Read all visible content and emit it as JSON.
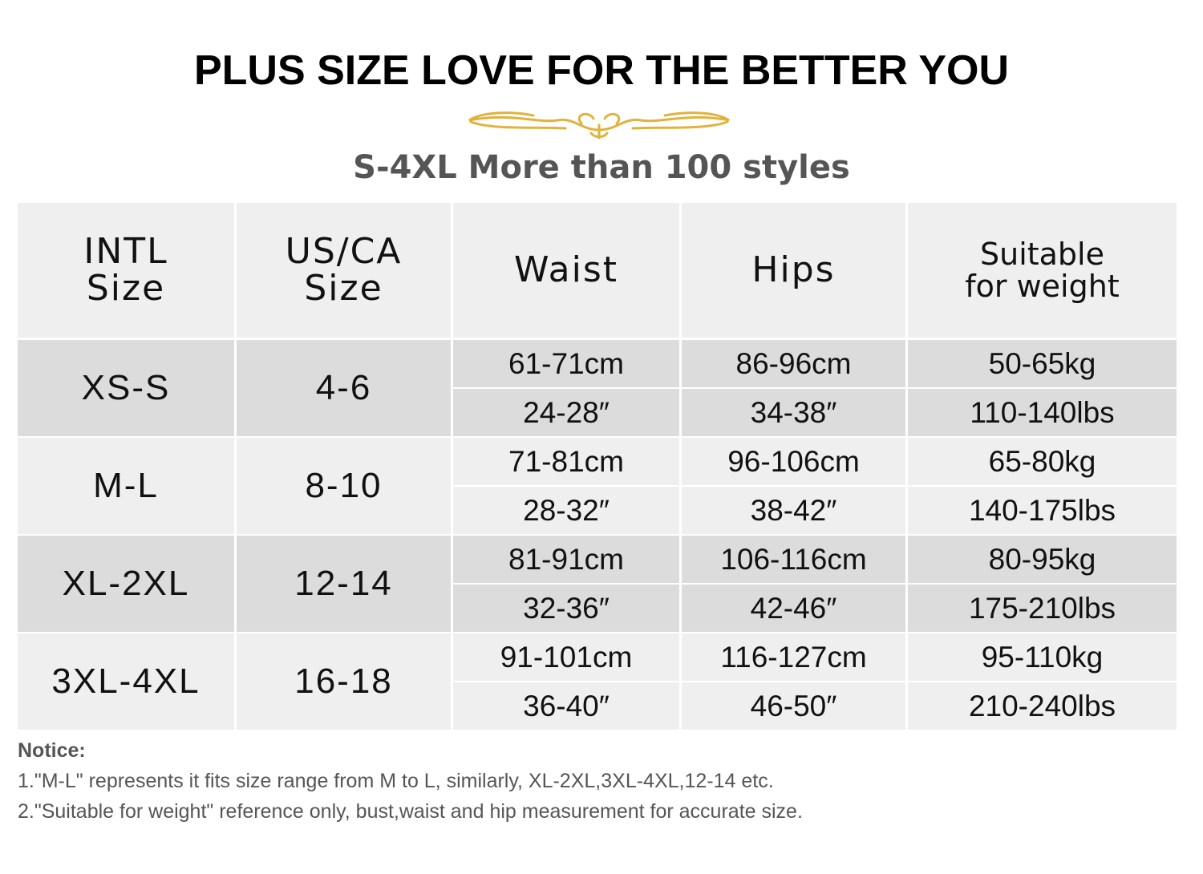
{
  "header": {
    "title": "PLUS SIZE LOVE FOR THE BETTER YOU",
    "subtitle": "S-4XL More than 100 styles"
  },
  "table": {
    "columns": [
      [
        "INTL",
        "Size"
      ],
      [
        "US/CA",
        "Size"
      ],
      [
        "Waist"
      ],
      [
        "Hips"
      ],
      [
        "Suitable",
        "for weight"
      ]
    ],
    "rows": [
      {
        "intl": "XS-S",
        "us": "4-6",
        "waist": [
          "61-71cm",
          "24-28″"
        ],
        "hips": [
          "86-96cm",
          "34-38″"
        ],
        "weight": [
          "50-65kg",
          "110-140lbs"
        ]
      },
      {
        "intl": "M-L",
        "us": "8-10",
        "waist": [
          "71-81cm",
          "28-32″"
        ],
        "hips": [
          "96-106cm",
          "38-42″"
        ],
        "weight": [
          "65-80kg",
          "140-175lbs"
        ]
      },
      {
        "intl": "XL-2XL",
        "us": "12-14",
        "waist": [
          "81-91cm",
          "32-36″"
        ],
        "hips": [
          "106-116cm",
          "42-46″"
        ],
        "weight": [
          "80-95kg",
          "175-210lbs"
        ]
      },
      {
        "intl": "3XL-4XL",
        "us": "16-18",
        "waist": [
          "91-101cm",
          "36-40″"
        ],
        "hips": [
          "116-127cm",
          "46-50″"
        ],
        "weight": [
          "95-110kg",
          "210-240lbs"
        ]
      }
    ]
  },
  "notice": {
    "title": "Notice:",
    "lines": [
      "1.\"M-L\" represents it fits size range from M to L,  similarly, XL-2XL,3XL-4XL,12-14 etc.",
      "2.\"Suitable for weight\" reference only, bust,waist and hip measurement for accurate size."
    ]
  }
}
